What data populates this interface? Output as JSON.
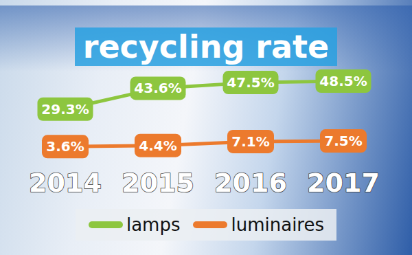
{
  "chart_data": {
    "type": "line",
    "title": "recycling rate",
    "categories": [
      "2014",
      "2015",
      "2016",
      "2017"
    ],
    "series": [
      {
        "name": "lamps",
        "color": "#8dc63f",
        "values": [
          29.3,
          43.6,
          47.5,
          48.5
        ],
        "value_labels": [
          "29.3%",
          "43.6%",
          "47.5%",
          "48.5%"
        ]
      },
      {
        "name": "luminaires",
        "color": "#ec7a2d",
        "values": [
          3.6,
          4.4,
          7.1,
          7.5
        ],
        "value_labels": [
          "3.6%",
          "4.4%",
          "7.1%",
          "7.5%"
        ]
      }
    ],
    "data_labels": true,
    "tick_labels": "x",
    "legend": "bottom",
    "grid": false
  }
}
